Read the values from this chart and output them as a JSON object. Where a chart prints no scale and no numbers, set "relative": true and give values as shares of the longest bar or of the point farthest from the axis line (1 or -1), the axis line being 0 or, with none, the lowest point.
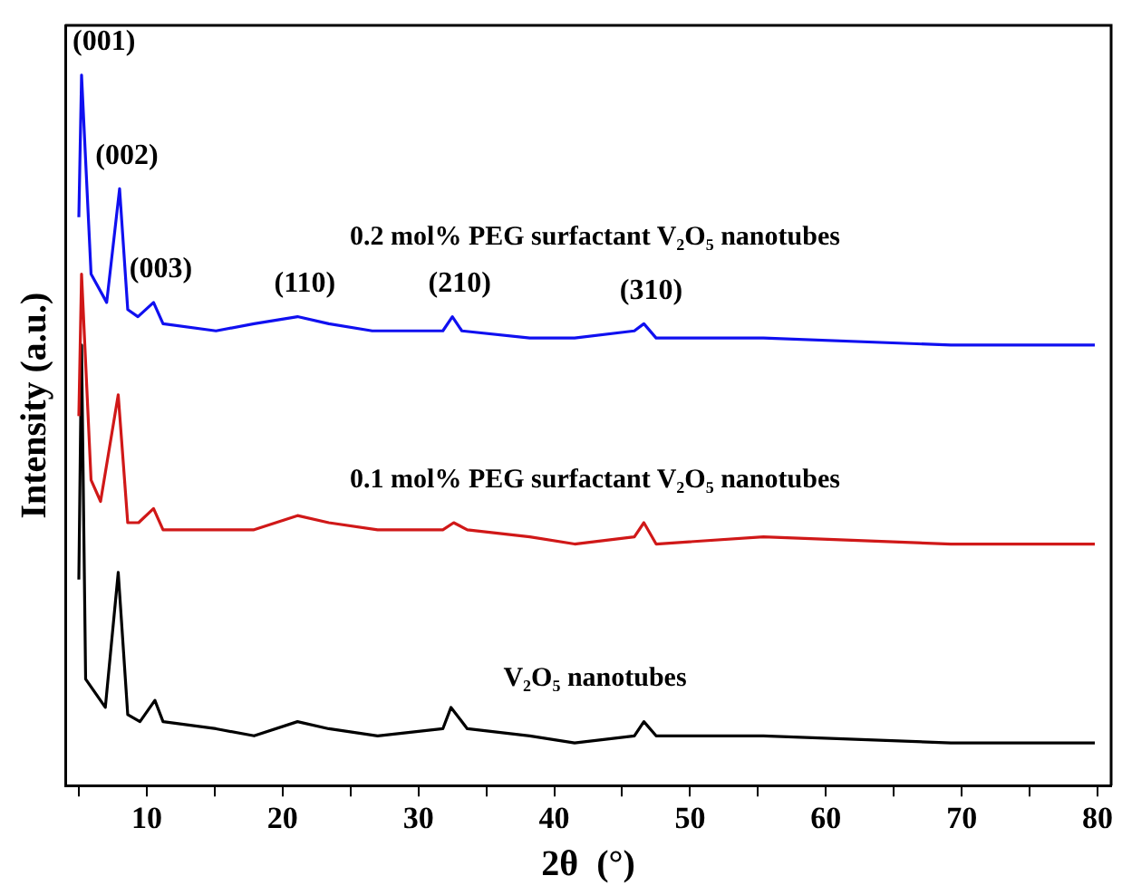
{
  "chart_data": {
    "type": "line",
    "relative": true,
    "xlabel": "2θ  (°)",
    "ylabel": "Intensity (a.u.)",
    "xlim": [
      4,
      81
    ],
    "xticks": [
      {
        "value": 5,
        "label": null
      },
      10,
      {
        "value": 15,
        "label": null
      },
      20,
      {
        "value": 25,
        "label": null
      },
      30,
      {
        "value": 35,
        "label": null
      },
      40,
      {
        "value": 45,
        "label": null
      },
      50,
      {
        "value": 55,
        "label": null
      },
      60,
      {
        "value": 65,
        "label": null
      },
      70,
      {
        "value": 75,
        "label": null
      },
      80
    ],
    "grid": false,
    "legend": false,
    "marker": "none",
    "line_style": "solid",
    "series": [
      {
        "name": "0.2 mol% PEG surfactant V₂O₅ nanotubes",
        "color": "#1010f0",
        "x": [
          5.0,
          5.2,
          5.9,
          7.05,
          8.0,
          8.6,
          9.35,
          10.5,
          11.2,
          15.1,
          17.9,
          21.1,
          23.4,
          26.6,
          31.8,
          32.5,
          33.2,
          38.2,
          41.5,
          45.9,
          46.6,
          47.5,
          55.4,
          69.2,
          79.8
        ],
        "values": [
          0.8,
          1.0,
          0.72,
          0.68,
          0.84,
          0.67,
          0.66,
          0.68,
          0.65,
          0.64,
          0.65,
          0.66,
          0.65,
          0.64,
          0.64,
          0.66,
          0.64,
          0.63,
          0.63,
          0.64,
          0.65,
          0.63,
          0.63,
          0.62,
          0.62
        ]
      },
      {
        "name": "0.1 mol% PEG surfactant V₂O₅ nanotubes",
        "color": "#d01818",
        "x": [
          5.0,
          5.2,
          5.9,
          6.6,
          7.9,
          8.6,
          9.4,
          10.5,
          11.2,
          15.1,
          17.9,
          21.1,
          23.4,
          27.0,
          31.8,
          32.6,
          33.6,
          38.2,
          41.5,
          45.9,
          46.6,
          47.5,
          55.4,
          69.2,
          79.8
        ],
        "values": [
          0.52,
          0.72,
          0.43,
          0.4,
          0.55,
          0.37,
          0.37,
          0.39,
          0.36,
          0.36,
          0.36,
          0.38,
          0.37,
          0.36,
          0.36,
          0.37,
          0.36,
          0.35,
          0.34,
          0.35,
          0.37,
          0.34,
          0.35,
          0.34,
          0.34
        ]
      },
      {
        "name": "V₂O₅ nanotubes",
        "color": "#000000",
        "x": [
          5.0,
          5.2,
          5.5,
          6.95,
          7.9,
          8.6,
          9.5,
          10.6,
          11.2,
          15.1,
          17.9,
          21.1,
          23.4,
          27.0,
          31.8,
          32.4,
          33.6,
          38.2,
          41.5,
          45.9,
          46.6,
          47.5,
          55.4,
          69.2,
          79.8
        ],
        "values": [
          0.29,
          0.62,
          0.15,
          0.11,
          0.3,
          0.1,
          0.09,
          0.12,
          0.09,
          0.08,
          0.07,
          0.09,
          0.08,
          0.07,
          0.08,
          0.11,
          0.08,
          0.07,
          0.06,
          0.07,
          0.09,
          0.07,
          0.07,
          0.06,
          0.06
        ]
      }
    ],
    "annotations": [
      {
        "text": "(001)",
        "x": 5.2,
        "y": 1.0
      },
      {
        "text": "(002)",
        "x": 8.0,
        "y": 0.84
      },
      {
        "text": "(003)",
        "x": 10.5,
        "y": 0.68
      },
      {
        "text": "(110)",
        "x": 21.1,
        "y": 0.66
      },
      {
        "text": "(210)",
        "x": 32.5,
        "y": 0.66
      },
      {
        "text": "(310)",
        "x": 46.6,
        "y": 0.65
      }
    ]
  }
}
